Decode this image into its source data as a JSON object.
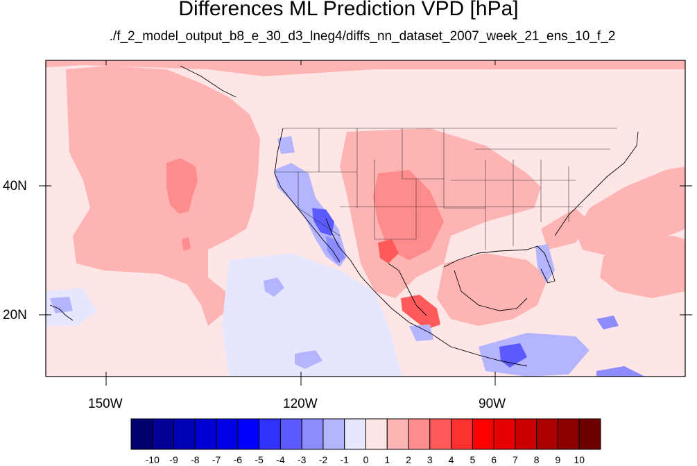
{
  "title": "Differences ML Prediction VPD [hPa]",
  "subtitle": "./f_2_model_output_b8_e_30_d3_lneg4/diffs_nn_dataset_2007_week_21_ens_10_f_2",
  "axes": {
    "lon_labels": [
      "150W",
      "120W",
      "90W"
    ],
    "lat_labels": [
      "40N",
      "20N"
    ]
  },
  "colorbar": {
    "labels": [
      "-10",
      "-9",
      "-8",
      "-7",
      "-6",
      "-5",
      "-4",
      "-3",
      "-2",
      "-1",
      "0",
      "1",
      "2",
      "3",
      "4",
      "5",
      "6",
      "7",
      "8",
      "9",
      "10"
    ],
    "colors": [
      "#00006e",
      "#000096",
      "#0000b4",
      "#0000d2",
      "#0000e6",
      "#0000ff",
      "#3232ff",
      "#5a5aff",
      "#8c8cff",
      "#b4b4ff",
      "#e6e6ff",
      "#ffe6e6",
      "#ffb4b4",
      "#ff8c8c",
      "#ff5a5a",
      "#ff3232",
      "#ff0000",
      "#e60000",
      "#c80000",
      "#aa0000",
      "#8c0000",
      "#6e0000"
    ]
  },
  "fills": {
    "background": "#ffe6e6",
    "pos1": "#ffb4b4",
    "pos2": "#ff8c8c",
    "pos3": "#ff5a5a",
    "neg1": "#e6e6ff",
    "neg2": "#b4b4ff",
    "neg3": "#8c8cff",
    "neg4": "#5a5aff"
  }
}
